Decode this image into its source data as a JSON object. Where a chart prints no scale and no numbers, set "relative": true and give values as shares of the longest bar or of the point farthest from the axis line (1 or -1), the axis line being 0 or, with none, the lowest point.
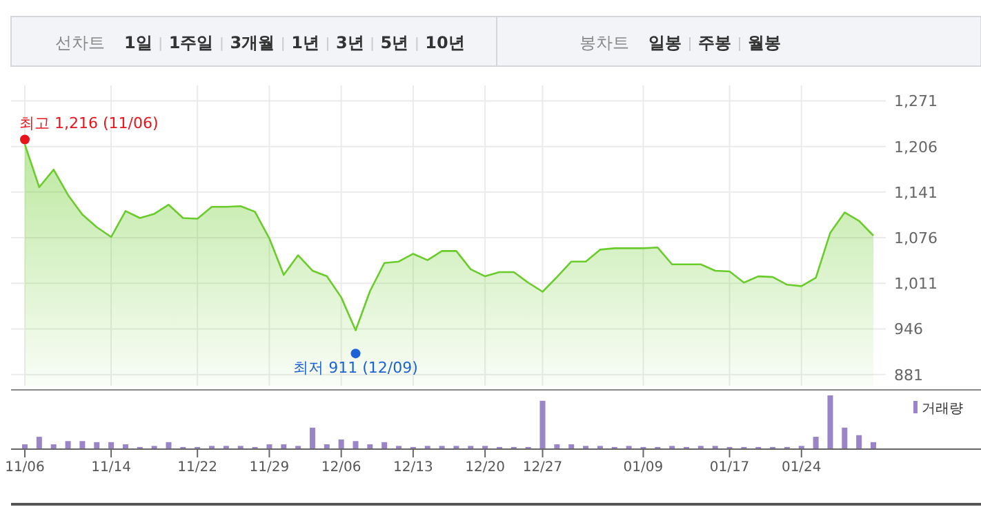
{
  "chart_data": [
    {
      "type": "other",
      "title": "선차트",
      "annotations": [
        "1일",
        "1주일",
        "3개월",
        "1년",
        "3년",
        "5년",
        "10년"
      ]
    },
    {
      "type": "other",
      "title": "봉차트",
      "annotations": [
        "일봉",
        "주봉",
        "월봉"
      ]
    },
    {
      "type": "area",
      "categories": [
        null,
        null,
        null,
        null,
        null,
        null,
        null,
        null,
        null,
        null,
        null,
        null,
        null,
        null,
        null,
        null,
        null,
        null,
        null,
        null,
        null,
        null,
        null,
        null,
        null,
        null,
        null,
        null,
        null,
        null,
        null,
        null,
        null,
        null,
        null,
        null,
        null,
        null,
        null,
        null,
        null,
        null,
        null,
        null,
        null,
        null,
        null,
        null,
        null,
        null,
        null,
        null,
        null,
        null,
        null,
        null,
        null,
        null,
        null,
        null
      ],
      "series": [
        {
          "type": "scatter",
          "color": "#e8141b",
          "values": [
            1216,
            null,
            null,
            null,
            null,
            null,
            null,
            null,
            null,
            null,
            null,
            null,
            null,
            null,
            null,
            null,
            null,
            null,
            null,
            null,
            null,
            null,
            null,
            null,
            null,
            null,
            null,
            null,
            null,
            null,
            null,
            null,
            null,
            null,
            null,
            null,
            null,
            null,
            null,
            null,
            null,
            null,
            null,
            null,
            null,
            null,
            null,
            null,
            null,
            null,
            null,
            null,
            null,
            null,
            null,
            null,
            null,
            null,
            null,
            null
          ]
        },
        {
          "type": "scatter",
          "color": "#1a62d6",
          "values": [
            null,
            null,
            null,
            null,
            null,
            null,
            null,
            null,
            null,
            null,
            null,
            null,
            null,
            null,
            null,
            null,
            null,
            null,
            null,
            null,
            null,
            null,
            null,
            911,
            null,
            null,
            null,
            null,
            null,
            null,
            null,
            null,
            null,
            null,
            null,
            null,
            null,
            null,
            null,
            null,
            null,
            null,
            null,
            null,
            null,
            null,
            null,
            null,
            null,
            null,
            null,
            null,
            null,
            null,
            null,
            null,
            null,
            null,
            null,
            null
          ]
        },
        {
          "color": "#6acc2a",
          "values": [
            1209,
            1148,
            1173,
            1137,
            1109,
            1091,
            1077,
            1114,
            1104,
            1110,
            1123,
            1104,
            1103,
            1120,
            1120,
            1121,
            1113,
            1075,
            1023,
            1051,
            1029,
            1021,
            991,
            944,
            1000,
            1040,
            1042,
            1053,
            1044,
            1057,
            1057,
            1031,
            1021,
            1027,
            1027,
            1012,
            999,
            1020,
            1042,
            1042,
            1059,
            1061,
            1061,
            1061,
            1062,
            1038,
            1038,
            1038,
            1029,
            1028,
            1012,
            1021,
            1020,
            1009,
            1007,
            1019,
            1083,
            1112,
            1100,
            1079
          ]
        }
      ],
      "ylim": [
        865,
        1293
      ],
      "yticks": [
        {
          "value": 881,
          "label": "881"
        },
        {
          "value": 946,
          "label": "946"
        },
        {
          "value": 1011,
          "label": "1,011"
        },
        {
          "value": 1076,
          "label": "1,076"
        },
        {
          "value": 1141,
          "label": "1,141"
        },
        {
          "value": 1206,
          "label": "1,206"
        },
        {
          "value": 1271,
          "label": "1,271"
        }
      ],
      "grid": true,
      "tick_labels": "y",
      "annotations": [
        "최고 1,216 (11/06)",
        "최저 911 (12/09)"
      ]
    },
    {
      "type": "bar",
      "relative": true,
      "categories": [
        "11/06",
        null,
        null,
        null,
        null,
        null,
        "11/14",
        null,
        null,
        null,
        null,
        null,
        "11/22",
        null,
        null,
        null,
        null,
        "11/29",
        null,
        null,
        null,
        null,
        "12/06",
        null,
        null,
        null,
        null,
        "12/13",
        null,
        null,
        null,
        null,
        "12/20",
        null,
        null,
        null,
        "12/27",
        null,
        null,
        null,
        null,
        null,
        null,
        "01/09",
        null,
        null,
        null,
        null,
        null,
        "01/17",
        null,
        null,
        null,
        null,
        "01/24",
        null,
        null,
        null,
        null,
        null
      ],
      "series": [
        {
          "name": "거래량",
          "color": "#9b85c9",
          "values": [
            0.09,
            0.23,
            0.09,
            0.15,
            0.15,
            0.13,
            0.13,
            0.09,
            0.04,
            0.06,
            0.13,
            0.04,
            0.04,
            0.06,
            0.06,
            0.06,
            0.04,
            0.09,
            0.09,
            0.06,
            0.4,
            0.09,
            0.18,
            0.15,
            0.09,
            0.13,
            0.06,
            0.04,
            0.06,
            0.06,
            0.06,
            0.06,
            0.06,
            0.04,
            0.04,
            0.04,
            0.9,
            0.09,
            0.09,
            0.06,
            0.06,
            0.04,
            0.06,
            0.04,
            0.04,
            0.06,
            0.04,
            0.06,
            0.06,
            0.04,
            0.04,
            0.04,
            0.04,
            0.04,
            0.06,
            0.23,
            1,
            0.4,
            0.26,
            0.13
          ]
        }
      ],
      "legend": "top right",
      "tick_labels": "x"
    }
  ]
}
